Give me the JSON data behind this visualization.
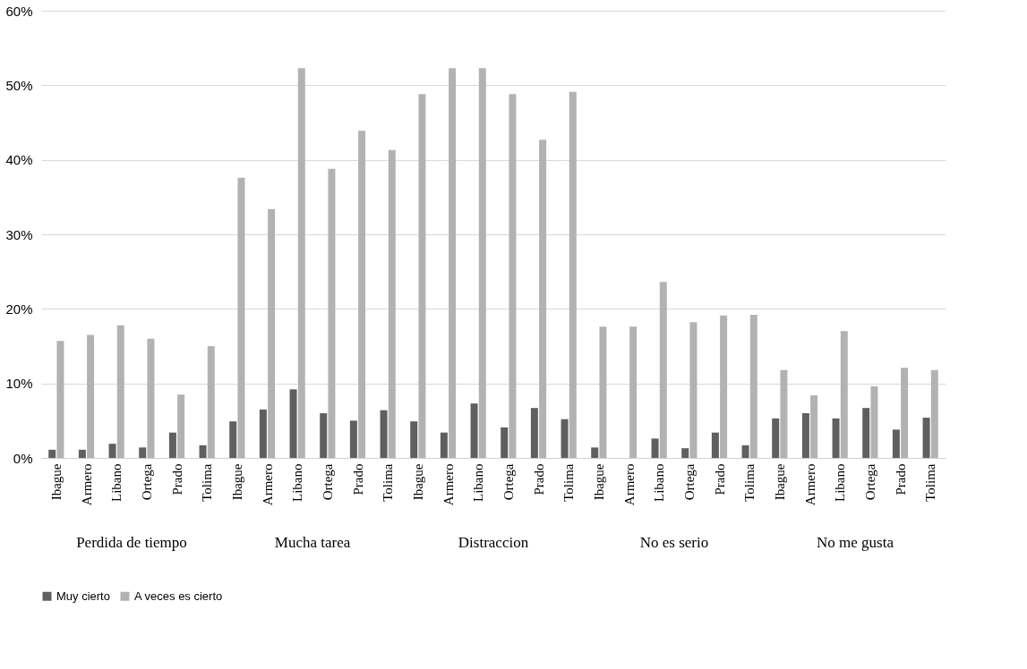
{
  "chart_data": {
    "type": "bar",
    "categories": [
      "Ibague",
      "Armero",
      "Libano",
      "Ortega",
      "Prado",
      "Tolima",
      "Ibague",
      "Armero",
      "Libano",
      "Ortega",
      "Prado",
      "Tolima",
      "Ibague",
      "Armero",
      "Libano",
      "Ortega",
      "Prado",
      "Tolima",
      "Ibague",
      "Armero",
      "Libano",
      "Ortega",
      "Prado",
      "Tolima",
      "Ibague",
      "Armero",
      "Libano",
      "Ortega",
      "Prado",
      "Tolima"
    ],
    "series": [
      {
        "name": "Muy cierto",
        "color": "#5f5f5f",
        "values": [
          1.1,
          1.1,
          1.9,
          1.4,
          3.4,
          1.7,
          4.9,
          6.5,
          9.2,
          6.0,
          5.0,
          6.4,
          4.9,
          3.4,
          7.3,
          4.1,
          6.7,
          5.2,
          1.4,
          0,
          2.6,
          1.3,
          3.4,
          1.7,
          5.3,
          6.0,
          5.3,
          6.7,
          3.8,
          5.4
        ]
      },
      {
        "name": "A veces es cierto",
        "color": "#b2b2b2",
        "values": [
          15.7,
          16.5,
          17.8,
          16.0,
          8.5,
          15.0,
          37.6,
          33.4,
          52.3,
          38.8,
          43.9,
          41.3,
          48.8,
          52.3,
          52.3,
          48.8,
          42.7,
          49.1,
          17.6,
          17.6,
          23.6,
          18.2,
          19.1,
          19.2,
          11.8,
          8.4,
          17.0,
          9.6,
          12.1,
          11.8
        ]
      }
    ],
    "annotations": [
      "Perdida de tiempo",
      "Mucha tarea",
      "Distraccion",
      "No es serio",
      "No me gusta"
    ],
    "ylim": [
      0,
      60
    ],
    "yticks": [
      {
        "value": 0,
        "label": "0%"
      },
      {
        "value": 10,
        "label": "10%"
      },
      {
        "value": 20,
        "label": "20%"
      },
      {
        "value": 30,
        "label": "30%"
      },
      {
        "value": 40,
        "label": "40%"
      },
      {
        "value": 50,
        "label": "50%"
      },
      {
        "value": 60,
        "label": "60%"
      }
    ],
    "grid": "y",
    "legend": "bottom"
  }
}
